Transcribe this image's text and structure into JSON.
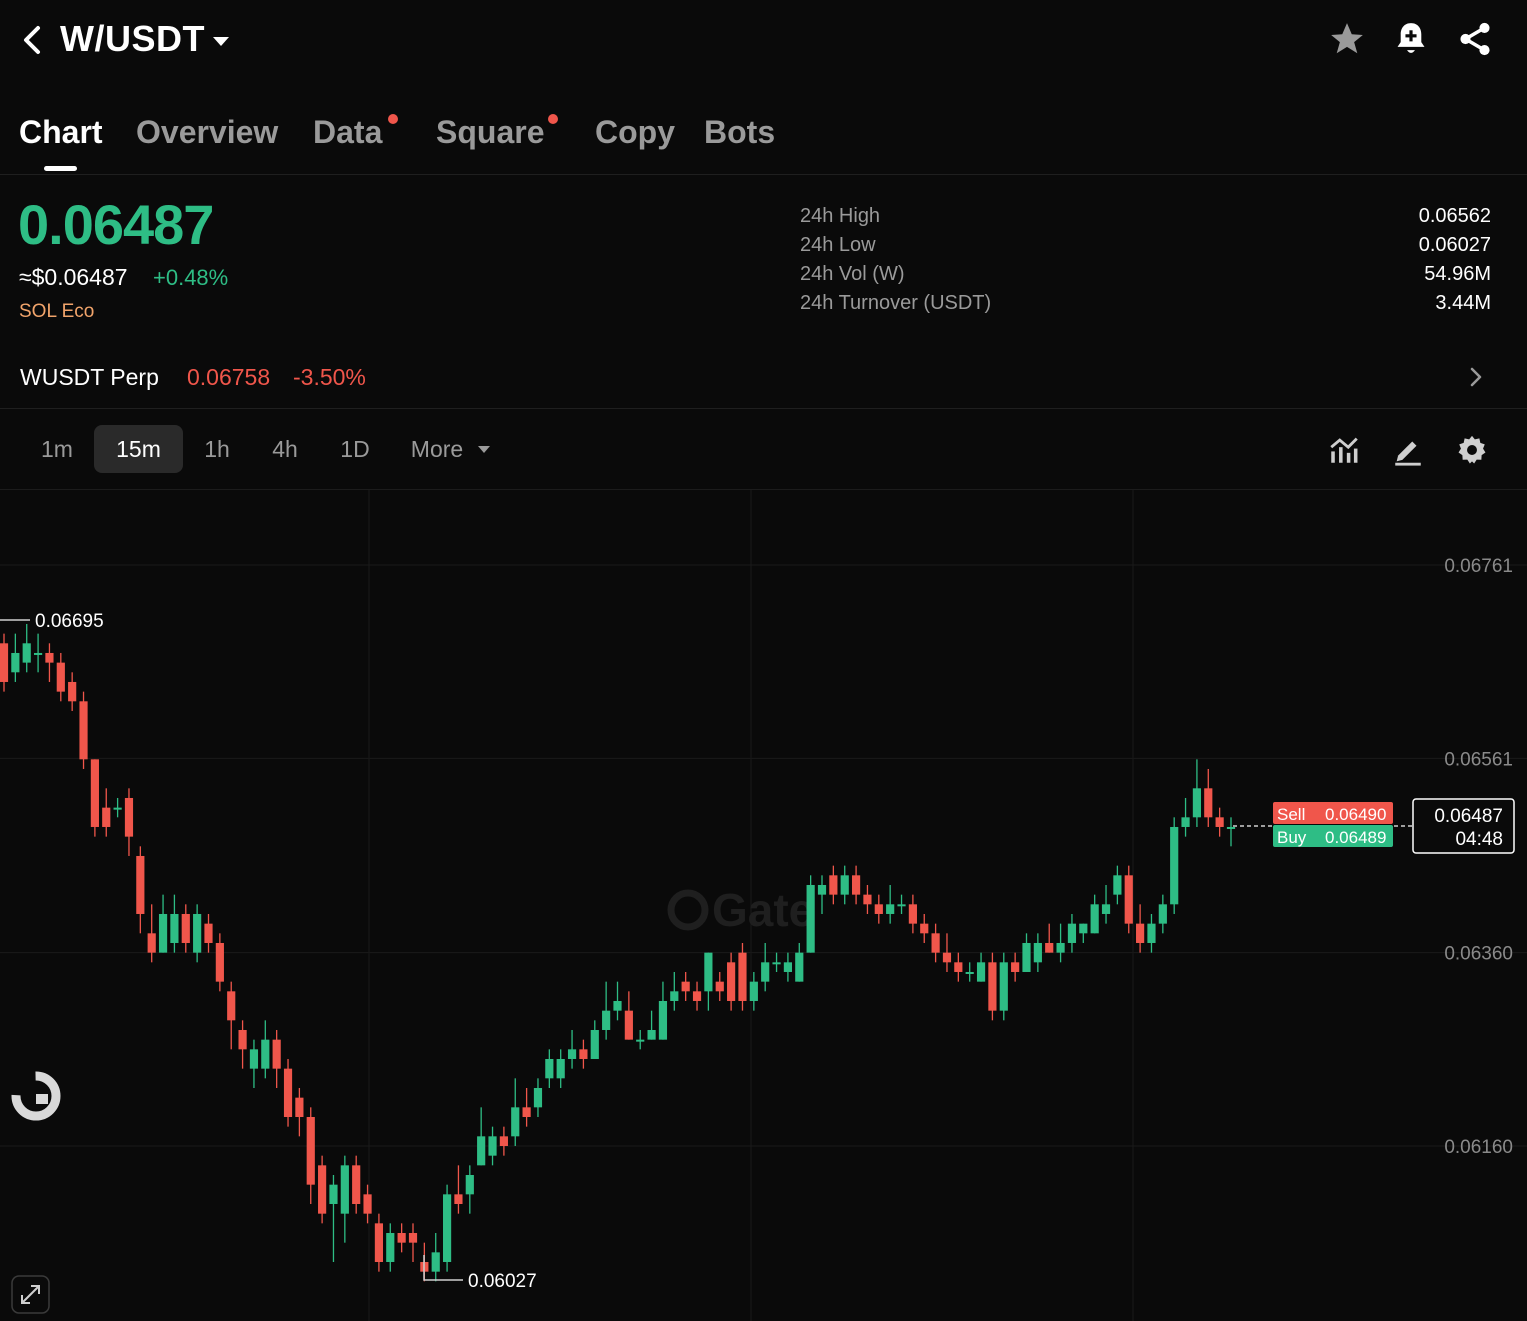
{
  "header": {
    "pair": "W/USDT",
    "back_icon": "chevron-left-icon",
    "caret_icon": "caret-down-icon",
    "icons": [
      "star-icon",
      "bell-plus-icon",
      "share-icon"
    ]
  },
  "tabs": [
    {
      "label": "Chart",
      "active": true,
      "dot": false
    },
    {
      "label": "Overview",
      "active": false,
      "dot": false
    },
    {
      "label": "Data",
      "active": false,
      "dot": true
    },
    {
      "label": "Square",
      "active": false,
      "dot": true
    },
    {
      "label": "Copy",
      "active": false,
      "dot": false
    },
    {
      "label": "Bots",
      "active": false,
      "dot": false
    }
  ],
  "price": {
    "last": "0.06487",
    "usd": "≈$0.06487",
    "change": "+0.48%",
    "tag": "SOL Eco"
  },
  "stats": [
    {
      "label": "24h High",
      "value": "0.06562"
    },
    {
      "label": "24h Low",
      "value": "0.06027"
    },
    {
      "label": "24h Vol (W)",
      "value": "54.96M"
    },
    {
      "label": "24h Turnover (USDT)",
      "value": "3.44M"
    }
  ],
  "perp": {
    "name": "WUSDT Perp",
    "price": "0.06758",
    "change": "-3.50%"
  },
  "intervals": [
    {
      "label": "1m",
      "active": false
    },
    {
      "label": "15m",
      "active": true
    },
    {
      "label": "1h",
      "active": false
    },
    {
      "label": "4h",
      "active": false
    },
    {
      "label": "1D",
      "active": false
    },
    {
      "label": "More",
      "active": false
    }
  ],
  "tools": [
    "indicator-icon",
    "draw-icon",
    "settings-icon"
  ],
  "colors": {
    "up": "#2ebd85",
    "down": "#f0564b",
    "bg": "#0a0a0a"
  },
  "chart_data": {
    "type": "candlestick",
    "y_ticks": [
      "0.06761",
      "0.06561",
      "0.06360",
      "0.06160"
    ],
    "y_tick_values": [
      0.06761,
      0.06561,
      0.0636,
      0.0616
    ],
    "high_marker": "0.06695",
    "low_marker": "0.06027",
    "last_price_label": "0.06487",
    "countdown": "04:48",
    "sell": {
      "label": "Sell",
      "price": "0.06490"
    },
    "buy": {
      "label": "Buy",
      "price": "0.06489"
    },
    "watermark": "Gate",
    "candles": [
      [
        0.0668,
        0.0664,
        0.0669,
        0.0663
      ],
      [
        0.0665,
        0.0667,
        0.0669,
        0.0664
      ],
      [
        0.0666,
        0.0668,
        0.067,
        0.0665
      ],
      [
        0.0667,
        0.0667,
        0.0669,
        0.0665
      ],
      [
        0.0667,
        0.0666,
        0.0668,
        0.0664
      ],
      [
        0.0666,
        0.0663,
        0.0667,
        0.0662
      ],
      [
        0.0664,
        0.0662,
        0.0665,
        0.0661
      ],
      [
        0.0662,
        0.0656,
        0.0663,
        0.0655
      ],
      [
        0.0656,
        0.0649,
        0.0656,
        0.0648
      ],
      [
        0.0651,
        0.0649,
        0.0653,
        0.0648
      ],
      [
        0.0651,
        0.0651,
        0.0652,
        0.065
      ],
      [
        0.0652,
        0.0648,
        0.0653,
        0.0646
      ],
      [
        0.0646,
        0.064,
        0.0647,
        0.0638
      ],
      [
        0.0638,
        0.0636,
        0.0641,
        0.0635
      ],
      [
        0.0636,
        0.064,
        0.0642,
        0.0636
      ],
      [
        0.0637,
        0.064,
        0.0642,
        0.0636
      ],
      [
        0.064,
        0.0637,
        0.0641,
        0.0636
      ],
      [
        0.0636,
        0.064,
        0.0641,
        0.0635
      ],
      [
        0.0639,
        0.0637,
        0.064,
        0.0636
      ],
      [
        0.0637,
        0.0633,
        0.0638,
        0.0632
      ],
      [
        0.0632,
        0.0629,
        0.0633,
        0.0626
      ],
      [
        0.0628,
        0.0626,
        0.0629,
        0.0624
      ],
      [
        0.0624,
        0.0626,
        0.0627,
        0.0622
      ],
      [
        0.0624,
        0.0627,
        0.0629,
        0.0623
      ],
      [
        0.0627,
        0.0624,
        0.0628,
        0.0622
      ],
      [
        0.0624,
        0.0619,
        0.0625,
        0.0618
      ],
      [
        0.0621,
        0.0619,
        0.0622,
        0.0617
      ],
      [
        0.0619,
        0.0612,
        0.062,
        0.061
      ],
      [
        0.0614,
        0.0609,
        0.0615,
        0.0608
      ],
      [
        0.061,
        0.0612,
        0.0613,
        0.0604
      ],
      [
        0.0609,
        0.0614,
        0.0615,
        0.0606
      ],
      [
        0.0614,
        0.061,
        0.0615,
        0.0609
      ],
      [
        0.0611,
        0.0609,
        0.0612,
        0.0608
      ],
      [
        0.0608,
        0.0604,
        0.0609,
        0.0603
      ],
      [
        0.0604,
        0.0607,
        0.0608,
        0.0603
      ],
      [
        0.0607,
        0.0606,
        0.0608,
        0.0605
      ],
      [
        0.0607,
        0.0606,
        0.0608,
        0.0604
      ],
      [
        0.0604,
        0.0603,
        0.0606,
        0.0602
      ],
      [
        0.0603,
        0.0605,
        0.0607,
        0.0602
      ],
      [
        0.0604,
        0.0611,
        0.0612,
        0.0603
      ],
      [
        0.0611,
        0.061,
        0.0614,
        0.0609
      ],
      [
        0.0611,
        0.0613,
        0.0614,
        0.0609
      ],
      [
        0.0614,
        0.0617,
        0.062,
        0.0614
      ],
      [
        0.0615,
        0.0617,
        0.0618,
        0.0614
      ],
      [
        0.0617,
        0.0616,
        0.0618,
        0.0615
      ],
      [
        0.0617,
        0.062,
        0.0623,
        0.0616
      ],
      [
        0.062,
        0.0619,
        0.0622,
        0.0618
      ],
      [
        0.062,
        0.0622,
        0.0623,
        0.0619
      ],
      [
        0.0623,
        0.0625,
        0.0626,
        0.0622
      ],
      [
        0.0623,
        0.0625,
        0.0626,
        0.0622
      ],
      [
        0.0625,
        0.0626,
        0.0628,
        0.0624
      ],
      [
        0.0626,
        0.0625,
        0.0627,
        0.0624
      ],
      [
        0.0625,
        0.0628,
        0.0629,
        0.0625
      ],
      [
        0.0628,
        0.063,
        0.0633,
        0.0627
      ],
      [
        0.063,
        0.0631,
        0.0633,
        0.0629
      ],
      [
        0.063,
        0.0627,
        0.0632,
        0.0627
      ],
      [
        0.0627,
        0.0627,
        0.0628,
        0.0626
      ],
      [
        0.0627,
        0.0628,
        0.063,
        0.0627
      ],
      [
        0.0627,
        0.0631,
        0.0633,
        0.0627
      ],
      [
        0.0631,
        0.0632,
        0.0634,
        0.063
      ],
      [
        0.0633,
        0.0632,
        0.0634,
        0.0631
      ],
      [
        0.0632,
        0.0631,
        0.0633,
        0.063
      ],
      [
        0.0632,
        0.0636,
        0.0636,
        0.063
      ],
      [
        0.0633,
        0.0632,
        0.0634,
        0.0631
      ],
      [
        0.0635,
        0.0631,
        0.0636,
        0.063
      ],
      [
        0.0636,
        0.0631,
        0.0637,
        0.063
      ],
      [
        0.0631,
        0.0633,
        0.0634,
        0.063
      ],
      [
        0.0633,
        0.0635,
        0.0637,
        0.0632
      ],
      [
        0.0635,
        0.0635,
        0.0636,
        0.0634
      ],
      [
        0.0634,
        0.0635,
        0.0636,
        0.0633
      ],
      [
        0.0633,
        0.0636,
        0.0637,
        0.0633
      ],
      [
        0.0636,
        0.0643,
        0.0644,
        0.0636
      ],
      [
        0.0642,
        0.0643,
        0.0644,
        0.064
      ],
      [
        0.0644,
        0.0642,
        0.0645,
        0.0641
      ],
      [
        0.0642,
        0.0644,
        0.0645,
        0.0641
      ],
      [
        0.0644,
        0.0642,
        0.0645,
        0.0641
      ],
      [
        0.0642,
        0.0641,
        0.0643,
        0.064
      ],
      [
        0.0641,
        0.064,
        0.0642,
        0.0639
      ],
      [
        0.064,
        0.0641,
        0.0643,
        0.0639
      ],
      [
        0.0641,
        0.0641,
        0.0642,
        0.064
      ],
      [
        0.0641,
        0.0639,
        0.0642,
        0.0638
      ],
      [
        0.0639,
        0.0638,
        0.064,
        0.0637
      ],
      [
        0.0638,
        0.0636,
        0.0639,
        0.0635
      ],
      [
        0.0636,
        0.0635,
        0.0638,
        0.0634
      ],
      [
        0.0635,
        0.0634,
        0.0636,
        0.0633
      ],
      [
        0.0634,
        0.0634,
        0.0635,
        0.0633
      ],
      [
        0.0633,
        0.0635,
        0.0636,
        0.0633
      ],
      [
        0.0635,
        0.063,
        0.0636,
        0.0629
      ],
      [
        0.063,
        0.0635,
        0.0636,
        0.0629
      ],
      [
        0.0635,
        0.0634,
        0.0636,
        0.0633
      ],
      [
        0.0634,
        0.0637,
        0.0638,
        0.0634
      ],
      [
        0.0635,
        0.0637,
        0.0638,
        0.0634
      ],
      [
        0.0637,
        0.0636,
        0.0639,
        0.0636
      ],
      [
        0.0636,
        0.0637,
        0.0639,
        0.0635
      ],
      [
        0.0637,
        0.0639,
        0.064,
        0.0636
      ],
      [
        0.0638,
        0.0639,
        0.0639,
        0.0637
      ],
      [
        0.0638,
        0.0641,
        0.0642,
        0.0638
      ],
      [
        0.064,
        0.0641,
        0.0643,
        0.0639
      ],
      [
        0.0642,
        0.0644,
        0.0645,
        0.0641
      ],
      [
        0.0644,
        0.0639,
        0.0645,
        0.0638
      ],
      [
        0.0639,
        0.0637,
        0.0641,
        0.0636
      ],
      [
        0.0637,
        0.0639,
        0.064,
        0.0636
      ],
      [
        0.0639,
        0.0641,
        0.0642,
        0.0638
      ],
      [
        0.0641,
        0.0649,
        0.065,
        0.064
      ],
      [
        0.0649,
        0.065,
        0.0652,
        0.0648
      ],
      [
        0.065,
        0.0653,
        0.0656,
        0.0649
      ],
      [
        0.0653,
        0.065,
        0.0655,
        0.0649
      ],
      [
        0.065,
        0.0649,
        0.0651,
        0.0648
      ],
      [
        0.0649,
        0.0649,
        0.065,
        0.0647
      ]
    ]
  }
}
